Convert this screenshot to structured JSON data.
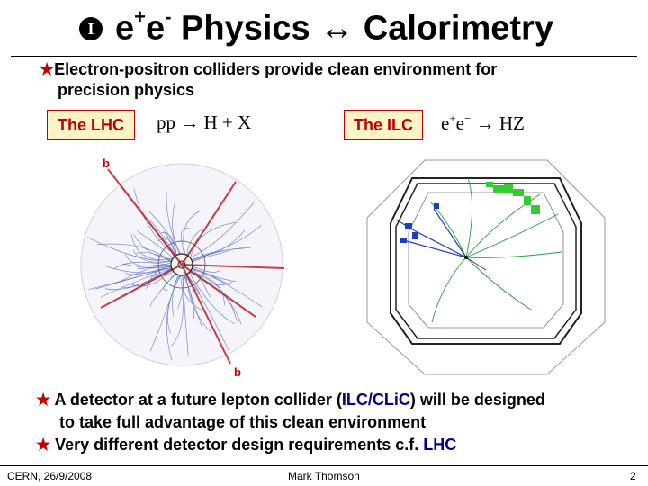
{
  "slide": {
    "title": {
      "badge": "I",
      "e1": "e",
      "plus": "+",
      "e2": "e",
      "minus": "-",
      "physics": " Physics ",
      "arrow": "↔",
      "calorimetry": " Calorimetry"
    },
    "bullet1": {
      "line1": "Electron-positron colliders provide clean environment for",
      "line2": "precision physics"
    },
    "lhc_label": "The LHC",
    "lhc_formula": {
      "lhs": "pp",
      "arrow": "→",
      "rhs": "H + X"
    },
    "ilc_label": "The ILC",
    "ilc_formula": {
      "e1": "e",
      "sup1": "+",
      "e2": "e",
      "sup2": "−",
      "arrow": "→",
      "rhs": "HZ"
    },
    "lhc_event": {
      "jet_label_top": "b",
      "jet_label_bottom": "b"
    },
    "bullets": [
      {
        "line1_a": "A detector at a future lepton collider (",
        "line1_b": "ILC/CLiC",
        "line1_c": ") will be designed",
        "line2": "to take full advantage of this clean environment"
      },
      {
        "line1_a": "Very different detector design requirements c.f. ",
        "line1_b": "LHC"
      }
    ],
    "footer": {
      "left": "CERN, 26/9/2008",
      "center": "Mark Thomson",
      "right": "2"
    },
    "colors": {
      "accent": "#c00000",
      "label_fill": "#fff3c8",
      "highlight": "#000080"
    }
  }
}
